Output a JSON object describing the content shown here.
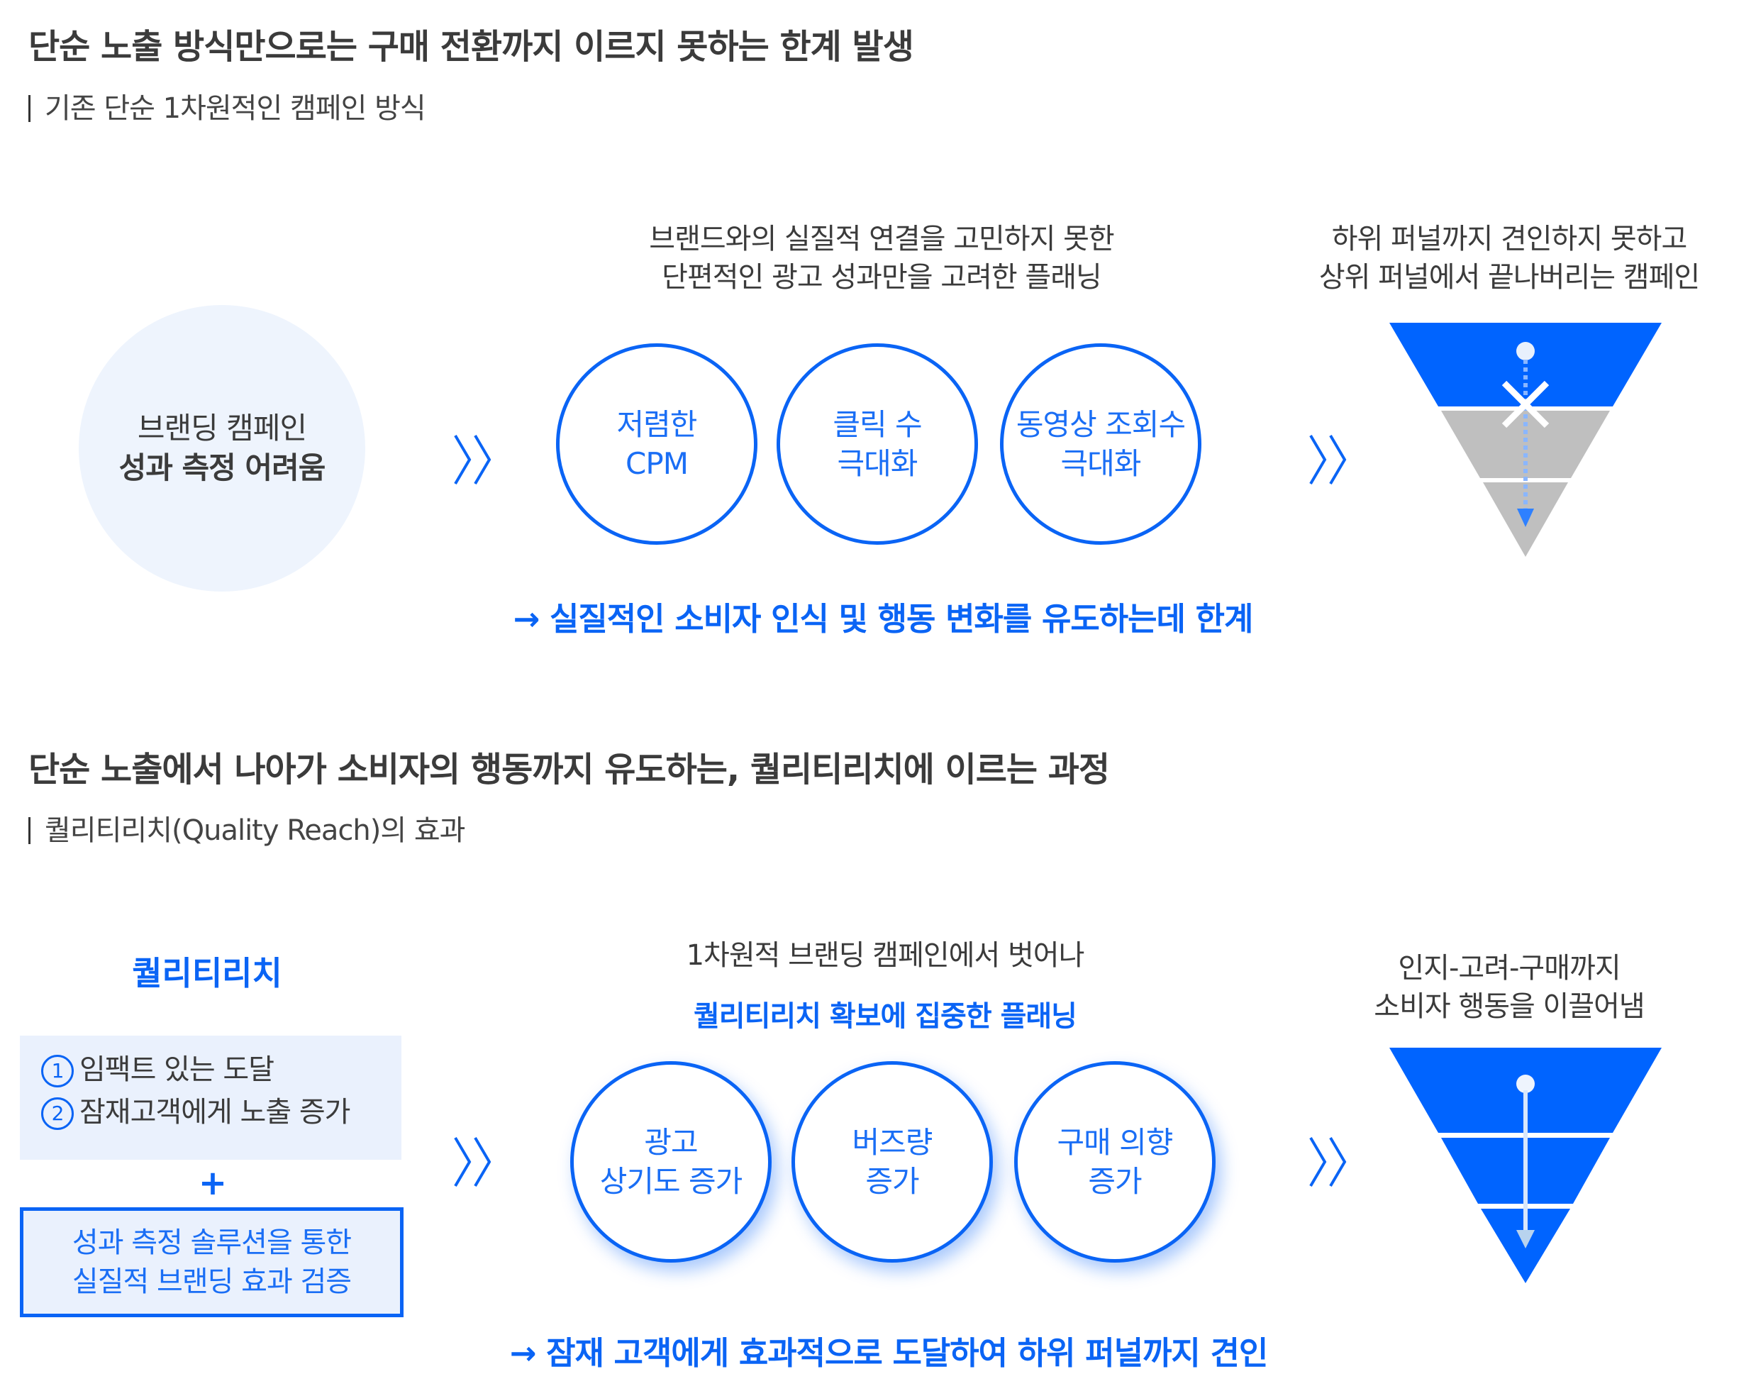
{
  "section1": {
    "title": "단순 노출 방식만으로는 구매 전환까지 이르지 못하는 한계 발생",
    "subtitle": "기존 단순 1차원적인 캠페인 방식",
    "left_circle": {
      "line1": "브랜딩 캠페인",
      "line2": "성과 측정 어려움"
    },
    "center_caption": {
      "line1": "브랜드와의 실질적 연결을 고민하지 못한",
      "line2": "단편적인 광고 성과만을 고려한 플래닝"
    },
    "circles": [
      {
        "line1": "저렴한",
        "line2": "CPM"
      },
      {
        "line1": "클릭 수",
        "line2": "극대화"
      },
      {
        "line1": "동영상 조회수",
        "line2": "극대화"
      }
    ],
    "right_caption": {
      "line1": "하위 퍼널까지 견인하지 못하고",
      "line2": "상위 퍼널에서 끝나버리는 캠페인"
    },
    "conclusion": "→ 실질적인 소비자 인식 및 행동 변화를 유도하는데 한계",
    "funnel": {
      "top_color": "#0064ff",
      "lower_color": "#bfbfbf",
      "blocked": true
    }
  },
  "section2": {
    "title": "단순 노출에서 나아가 소비자의 행동까지 유도하는, 퀄리티리치에 이르는 과정",
    "subtitle": "퀄리티리치(Quality Reach)의 효과",
    "label": "퀄리티리치",
    "box1": [
      {
        "num": "1",
        "text": "임팩트 있는 도달"
      },
      {
        "num": "2",
        "text": "잠재고객에게 노출 증가"
      }
    ],
    "plus": "+",
    "box2": {
      "line1": "성과 측정 솔루션을 통한",
      "line2": "실질적 브랜딩 효과 검증"
    },
    "center_caption": {
      "line1": "1차원적 브랜딩 캠페인에서 벗어나",
      "line2": "퀄리티리치 확보에 집중한 플래닝"
    },
    "circles": [
      {
        "line1": "광고",
        "line2": "상기도 증가"
      },
      {
        "line1": "버즈량",
        "line2": "증가"
      },
      {
        "line1": "구매 의향",
        "line2": "증가"
      }
    ],
    "right_caption": {
      "line1": "인지-고려-구매까지",
      "line2": "소비자 행동을 이끌어냄"
    },
    "conclusion": "→ 잠재 고객에게 효과적으로 도달하여 하위 퍼널까지 견인",
    "funnel": {
      "color": "#0064ff"
    }
  },
  "colors": {
    "accent": "#0a64f5",
    "text": "#3b3b3b",
    "light_bg": "#eaf1fd"
  }
}
